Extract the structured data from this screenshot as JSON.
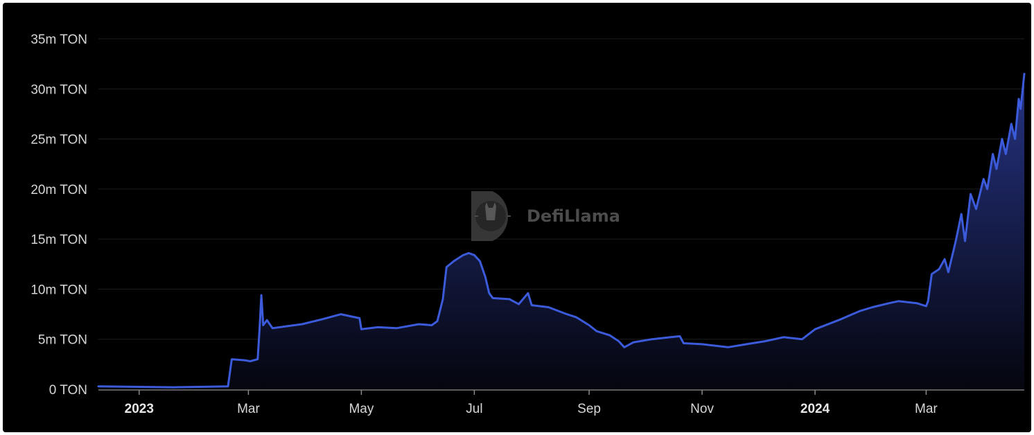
{
  "watermark": {
    "text": "DefiLlama",
    "icon": "llama-logo-icon"
  },
  "colors": {
    "background": "#000000",
    "line": "#3b5bdb",
    "area_top": "#28368a",
    "area_bottom": "#05060f",
    "grid": "#1e1e1e",
    "text": "#d6d6d6"
  },
  "chart_data": {
    "type": "area",
    "title": "",
    "xlabel": "",
    "ylabel": "",
    "x_range": [
      "2022-12-10",
      "2024-04-23"
    ],
    "ylim": [
      0,
      35000000
    ],
    "y_ticks": [
      {
        "value": 0,
        "label": "0 TON"
      },
      {
        "value": 5000000,
        "label": "5m TON"
      },
      {
        "value": 10000000,
        "label": "10m TON"
      },
      {
        "value": 15000000,
        "label": "15m TON"
      },
      {
        "value": 20000000,
        "label": "20m TON"
      },
      {
        "value": 25000000,
        "label": "25m TON"
      },
      {
        "value": 30000000,
        "label": "30m TON"
      },
      {
        "value": 35000000,
        "label": "35m TON"
      }
    ],
    "x_ticks": [
      {
        "date": "2023-01-01",
        "label": "2023",
        "bold": true
      },
      {
        "date": "2023-03-01",
        "label": "Mar",
        "bold": false
      },
      {
        "date": "2023-05-01",
        "label": "May",
        "bold": false
      },
      {
        "date": "2023-07-01",
        "label": "Jul",
        "bold": false
      },
      {
        "date": "2023-09-01",
        "label": "Sep",
        "bold": false
      },
      {
        "date": "2023-11-01",
        "label": "Nov",
        "bold": false
      },
      {
        "date": "2024-01-01",
        "label": "2024",
        "bold": true
      },
      {
        "date": "2024-03-01",
        "label": "Mar",
        "bold": false
      }
    ],
    "grid": true,
    "legend": "none",
    "series": [
      {
        "points": [
          [
            "2022-12-10",
            300000
          ],
          [
            "2023-01-20",
            200000
          ],
          [
            "2023-02-05",
            250000
          ],
          [
            "2023-02-18",
            300000
          ],
          [
            "2023-02-20",
            3000000
          ],
          [
            "2023-02-27",
            2900000
          ],
          [
            "2023-03-02",
            2800000
          ],
          [
            "2023-03-06",
            3000000
          ],
          [
            "2023-03-07",
            6000000
          ],
          [
            "2023-03-08",
            9400000
          ],
          [
            "2023-03-09",
            6400000
          ],
          [
            "2023-03-11",
            6900000
          ],
          [
            "2023-03-14",
            6100000
          ],
          [
            "2023-03-22",
            6300000
          ],
          [
            "2023-03-30",
            6500000
          ],
          [
            "2023-04-10",
            7000000
          ],
          [
            "2023-04-20",
            7500000
          ],
          [
            "2023-04-30",
            7100000
          ],
          [
            "2023-05-01",
            6000000
          ],
          [
            "2023-05-10",
            6200000
          ],
          [
            "2023-05-20",
            6100000
          ],
          [
            "2023-06-01",
            6500000
          ],
          [
            "2023-06-08",
            6400000
          ],
          [
            "2023-06-11",
            6800000
          ],
          [
            "2023-06-14",
            9000000
          ],
          [
            "2023-06-16",
            12200000
          ],
          [
            "2023-06-20",
            12800000
          ],
          [
            "2023-06-25",
            13400000
          ],
          [
            "2023-06-28",
            13600000
          ],
          [
            "2023-07-01",
            13400000
          ],
          [
            "2023-07-04",
            12800000
          ],
          [
            "2023-07-07",
            11200000
          ],
          [
            "2023-07-09",
            9600000
          ],
          [
            "2023-07-11",
            9100000
          ],
          [
            "2023-07-20",
            9000000
          ],
          [
            "2023-07-25",
            8500000
          ],
          [
            "2023-07-30",
            9600000
          ],
          [
            "2023-08-01",
            8400000
          ],
          [
            "2023-08-10",
            8200000
          ],
          [
            "2023-08-20",
            7500000
          ],
          [
            "2023-08-25",
            7200000
          ],
          [
            "2023-09-01",
            6400000
          ],
          [
            "2023-09-05",
            5800000
          ],
          [
            "2023-09-12",
            5400000
          ],
          [
            "2023-09-17",
            4800000
          ],
          [
            "2023-09-20",
            4200000
          ],
          [
            "2023-09-25",
            4700000
          ],
          [
            "2023-10-05",
            5000000
          ],
          [
            "2023-10-15",
            5200000
          ],
          [
            "2023-10-20",
            5300000
          ],
          [
            "2023-10-22",
            4600000
          ],
          [
            "2023-11-01",
            4500000
          ],
          [
            "2023-11-15",
            4200000
          ],
          [
            "2023-11-25",
            4500000
          ],
          [
            "2023-12-05",
            4800000
          ],
          [
            "2023-12-15",
            5200000
          ],
          [
            "2023-12-25",
            5000000
          ],
          [
            "2024-01-01",
            6000000
          ],
          [
            "2024-01-15",
            7000000
          ],
          [
            "2024-01-25",
            7800000
          ],
          [
            "2024-02-01",
            8200000
          ],
          [
            "2024-02-10",
            8600000
          ],
          [
            "2024-02-15",
            8800000
          ],
          [
            "2024-02-25",
            8600000
          ],
          [
            "2024-03-01",
            8300000
          ],
          [
            "2024-03-02",
            8800000
          ],
          [
            "2024-03-04",
            11500000
          ],
          [
            "2024-03-08",
            12000000
          ],
          [
            "2024-03-11",
            13000000
          ],
          [
            "2024-03-13",
            11700000
          ],
          [
            "2024-03-17",
            14800000
          ],
          [
            "2024-03-20",
            17500000
          ],
          [
            "2024-03-22",
            14800000
          ],
          [
            "2024-03-25",
            19500000
          ],
          [
            "2024-03-28",
            18000000
          ],
          [
            "2024-04-01",
            21000000
          ],
          [
            "2024-04-03",
            20000000
          ],
          [
            "2024-04-06",
            23500000
          ],
          [
            "2024-04-08",
            22000000
          ],
          [
            "2024-04-11",
            25000000
          ],
          [
            "2024-04-13",
            23500000
          ],
          [
            "2024-04-16",
            26500000
          ],
          [
            "2024-04-18",
            25000000
          ],
          [
            "2024-04-20",
            29000000
          ],
          [
            "2024-04-21",
            28000000
          ],
          [
            "2024-04-23",
            31500000
          ]
        ]
      }
    ]
  }
}
